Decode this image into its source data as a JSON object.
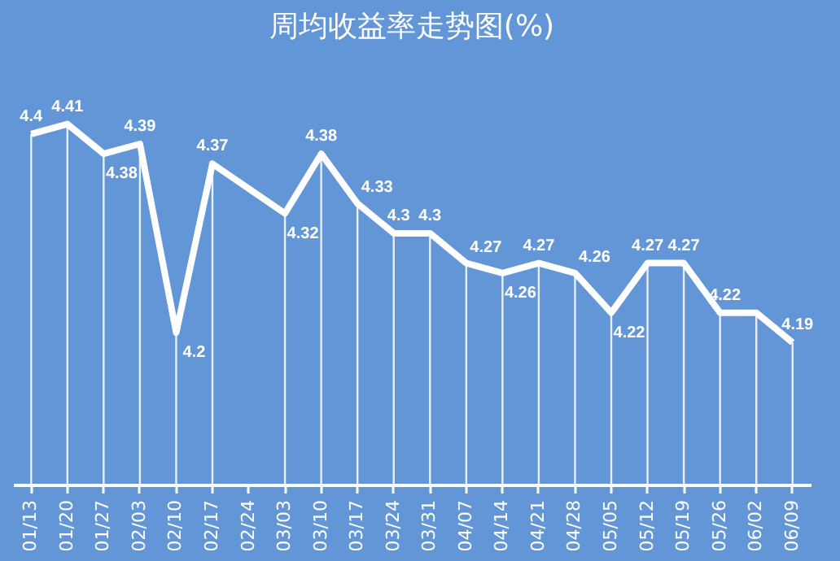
{
  "chart_data": {
    "type": "line",
    "title": "周均收益率走势图(%)",
    "categories": [
      "01/13",
      "01/20",
      "01/27",
      "02/03",
      "02/10",
      "02/17",
      "02/24",
      "03/03",
      "03/10",
      "03/17",
      "03/24",
      "03/31",
      "04/07",
      "04/14",
      "04/21",
      "04/28",
      "05/05",
      "05/12",
      "05/19",
      "05/26",
      "06/02",
      "06/09"
    ],
    "series": [
      {
        "color": "#ffffff",
        "values": [
          4.4,
          4.41,
          4.38,
          4.39,
          4.2,
          4.37,
          null,
          4.32,
          4.38,
          4.33,
          4.3,
          4.3,
          4.27,
          4.26,
          4.27,
          4.26,
          4.22,
          4.27,
          4.27,
          4.22,
          4.22,
          4.19
        ],
        "value_labels": [
          "4.4",
          "4.41",
          "4.38",
          "4.39",
          "4.2",
          "4.37",
          null,
          "4.32",
          "4.38",
          "4.33",
          "4.3",
          "4.3",
          "4.27",
          "4.26",
          "4.27",
          "4.26",
          "4.22",
          "4.27",
          "4.27",
          "4.22",
          null,
          "4.19"
        ]
      }
    ],
    "grid": "x",
    "marker": "none",
    "line_style": "solid",
    "tick_labels": "x"
  }
}
